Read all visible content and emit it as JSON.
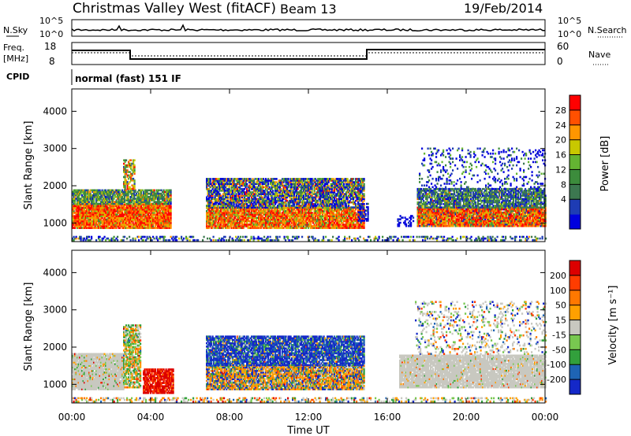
{
  "header": {
    "station": "Christmas Valley West (fitACF)",
    "beam": "Beam 13",
    "date": "19/Feb/2014"
  },
  "panels": {
    "nsky_label": "N.Sky",
    "nsky_ticks": [
      "10^5",
      "10^0"
    ],
    "nsearch_label": "N.Search",
    "nsearch_ticks": [
      "10^5",
      "10^0"
    ],
    "freq_label": "Freq.",
    "freq_unit": "[MHz]",
    "freq_ticks": [
      "18",
      "8"
    ],
    "nave_label": "Nave",
    "nave_ticks": [
      "60",
      "0"
    ],
    "cpid_label": "CPID",
    "cpid_text": "normal (fast) 151 IF"
  },
  "chart_data": [
    {
      "type": "heatmap",
      "name": "power",
      "ylabel": "Slant Range [km]",
      "yticks": [
        "1000",
        "2000",
        "3000",
        "4000"
      ],
      "ylim": [
        500,
        4600
      ],
      "xlim": [
        "00:00",
        "24:00"
      ],
      "colorbar": {
        "label": "Power [dB]",
        "ticks": [
          "28",
          "24",
          "20",
          "16",
          "12",
          "8",
          "4"
        ],
        "colors": [
          "#0000dd",
          "#1e3cb4",
          "#3c7850",
          "#3c8c3c",
          "#64b432",
          "#c8c800",
          "#ff9600",
          "#ff5000",
          "#ff0000"
        ]
      }
    },
    {
      "type": "heatmap",
      "name": "velocity",
      "ylabel": "Slant Range [km]",
      "yticks": [
        "1000",
        "2000",
        "3000",
        "4000"
      ],
      "ylim": [
        500,
        4600
      ],
      "xlim": [
        "00:00",
        "24:00"
      ],
      "colorbar": {
        "label": "Velocity [m s⁻¹]",
        "ticks": [
          "200",
          "100",
          "50",
          "15",
          "-15",
          "-50",
          "-100",
          "-200"
        ],
        "colors": [
          "#1428c8",
          "#1e64b4",
          "#32a03c",
          "#78c850",
          "#c8c8c0",
          "#ffa000",
          "#ff7800",
          "#ff3c00",
          "#dc0000"
        ]
      }
    }
  ],
  "xaxis": {
    "ticks": [
      "00:00",
      "04:00",
      "08:00",
      "12:00",
      "16:00",
      "20:00",
      "00:00"
    ],
    "label": "Time UT"
  }
}
